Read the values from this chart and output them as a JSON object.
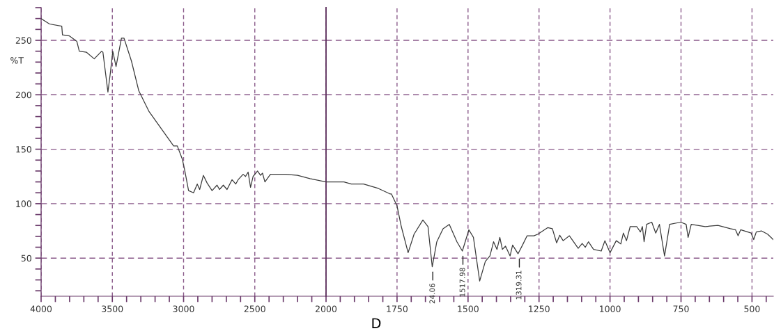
{
  "chart_data": [
    {
      "type": "line",
      "ylabel": "%T",
      "x": [
        4000,
        3941,
        3855,
        3850,
        3801,
        3749,
        3732,
        3681,
        3627,
        3575,
        3566,
        3531,
        3514,
        3497,
        3474,
        3436,
        3418,
        3366,
        3314,
        3244,
        3157,
        3070,
        3044,
        3009,
        2991,
        2965,
        2930,
        2904,
        2887,
        2861,
        2835,
        2800,
        2765,
        2748,
        2721,
        2695,
        2660,
        2634,
        2617,
        2582,
        2565,
        2547,
        2530,
        2512,
        2481,
        2460,
        2446,
        2429,
        2390,
        2286,
        2200,
        2113,
        2000
      ],
      "series": [
        {
          "color": "#3a3a3a",
          "values": [
            270,
            265,
            263,
            255,
            254,
            249,
            240,
            239,
            233,
            240,
            239,
            202.5,
            220,
            240,
            226,
            252,
            252,
            231,
            203.5,
            185,
            169,
            153,
            153,
            141,
            130,
            112,
            110,
            118,
            113,
            126,
            119,
            112,
            117,
            113,
            117,
            113,
            122,
            118,
            122,
            127,
            125,
            129,
            115,
            125,
            130,
            126,
            128,
            120,
            127,
            127,
            126,
            123,
            120
          ]
        }
      ],
      "xlim": [
        4000,
        2000
      ],
      "xticks": [
        4000,
        {
          "value": 3900,
          "label": null
        },
        {
          "value": 3800,
          "label": null
        },
        {
          "value": 3700,
          "label": null
        },
        {
          "value": 3600,
          "label": null
        },
        3500,
        {
          "value": 3400,
          "label": null
        },
        {
          "value": 3300,
          "label": null
        },
        {
          "value": 3200,
          "label": null
        },
        {
          "value": 3100,
          "label": null
        },
        3000,
        {
          "value": 2900,
          "label": null
        },
        {
          "value": 2800,
          "label": null
        },
        {
          "value": 2700,
          "label": null
        },
        {
          "value": 2600,
          "label": null
        },
        2500,
        {
          "value": 2400,
          "label": null
        },
        {
          "value": 2300,
          "label": null
        },
        {
          "value": 2200,
          "label": null
        },
        {
          "value": 2100,
          "label": null
        },
        2000
      ],
      "ylim": [
        15,
        280
      ],
      "yticks": [
        {
          "value": 20,
          "label": null
        },
        {
          "value": 30,
          "label": null
        },
        {
          "value": 40,
          "label": null
        },
        50,
        {
          "value": 60,
          "label": null
        },
        {
          "value": 70,
          "label": null
        },
        {
          "value": 80,
          "label": null
        },
        {
          "value": 90,
          "label": null
        },
        100,
        {
          "value": 110,
          "label": null
        },
        {
          "value": 120,
          "label": null
        },
        {
          "value": 130,
          "label": null
        },
        {
          "value": 140,
          "label": null
        },
        150,
        {
          "value": 160,
          "label": null
        },
        {
          "value": 170,
          "label": null
        },
        {
          "value": 180,
          "label": null
        },
        {
          "value": 190,
          "label": null
        },
        200,
        {
          "value": 210,
          "label": null
        },
        {
          "value": 220,
          "label": null
        },
        {
          "value": 230,
          "label": null
        },
        {
          "value": 240,
          "label": null
        },
        250,
        {
          "value": 260,
          "label": null
        },
        {
          "value": 270,
          "label": null
        },
        {
          "value": 280,
          "label": null
        }
      ],
      "grid": true,
      "line_style": "solid"
    },
    {
      "type": "line",
      "xlabel": "D",
      "x": [
        2000,
        1937,
        1911,
        1868,
        1816,
        1775,
        1770,
        1750,
        1735,
        1711,
        1690,
        1659,
        1641,
        1626,
        1610,
        1588,
        1566,
        1539,
        1520,
        1497,
        1481,
        1459,
        1439,
        1423,
        1410,
        1398,
        1388,
        1379,
        1368,
        1352,
        1343,
        1324,
        1308,
        1292,
        1268,
        1254,
        1219,
        1203,
        1188,
        1177,
        1165,
        1143,
        1112,
        1098,
        1087,
        1076,
        1058,
        1031,
        1018,
        1000,
        978,
        962,
        953,
        942,
        929,
        906,
        893,
        886,
        880,
        871,
        853,
        839,
        826,
        808,
        790,
        751,
        732,
        725,
        714,
        665,
        620,
        576,
        558,
        549,
        540,
        503,
        494,
        485,
        467,
        445,
        425
      ],
      "series": [
        {
          "color": "#3a3a3a",
          "values": [
            120,
            120,
            118,
            118,
            114,
            109,
            109,
            98,
            79,
            55,
            72,
            85,
            79,
            42,
            65,
            77,
            81,
            65,
            56.5,
            76,
            69,
            29,
            47,
            52,
            65,
            58,
            69,
            58,
            61,
            52,
            62,
            54,
            62,
            70.5,
            70.5,
            72,
            78,
            77,
            64,
            71,
            66,
            70.5,
            59,
            63.5,
            60,
            65,
            58,
            56.5,
            66,
            55,
            66,
            63,
            73,
            66,
            79,
            79,
            74,
            79,
            65,
            81,
            83,
            73,
            81,
            52,
            81,
            83,
            81,
            69,
            81,
            79,
            80,
            77,
            76,
            70.5,
            76,
            73,
            67,
            74,
            75,
            72,
            67
          ]
        }
      ],
      "xlim": [
        2000,
        425
      ],
      "xticks": [
        {
          "value": 1950,
          "label": null
        },
        {
          "value": 1900,
          "label": null
        },
        {
          "value": 1850,
          "label": null
        },
        {
          "value": 1800,
          "label": null
        },
        1750,
        {
          "value": 1700,
          "label": null
        },
        {
          "value": 1650,
          "label": null
        },
        {
          "value": 1600,
          "label": null
        },
        {
          "value": 1550,
          "label": null
        },
        1500,
        {
          "value": 1450,
          "label": null
        },
        {
          "value": 1400,
          "label": null
        },
        {
          "value": 1350,
          "label": null
        },
        {
          "value": 1300,
          "label": null
        },
        1250,
        {
          "value": 1200,
          "label": null
        },
        {
          "value": 1150,
          "label": null
        },
        {
          "value": 1100,
          "label": null
        },
        {
          "value": 1050,
          "label": null
        },
        1000,
        {
          "value": 950,
          "label": null
        },
        {
          "value": 900,
          "label": null
        },
        {
          "value": 850,
          "label": null
        },
        {
          "value": 800,
          "label": null
        },
        750,
        {
          "value": 700,
          "label": null
        },
        {
          "value": 650,
          "label": null
        },
        {
          "value": 600,
          "label": null
        },
        {
          "value": 550,
          "label": null
        },
        500,
        {
          "value": 450,
          "label": null
        }
      ],
      "ylim": [
        15,
        280
      ],
      "yticks": [
        50,
        100,
        150,
        200,
        250
      ],
      "tick_labels": "x",
      "grid": true,
      "line_style": "solid",
      "annotations": [
        {
          "text": "24.06",
          "x": 1624.06,
          "y": 42
        },
        {
          "text": "1517.98",
          "x": 1517.98,
          "y": 56.5
        },
        {
          "text": "1319.31",
          "x": 1319.31,
          "y": 54
        }
      ]
    }
  ]
}
